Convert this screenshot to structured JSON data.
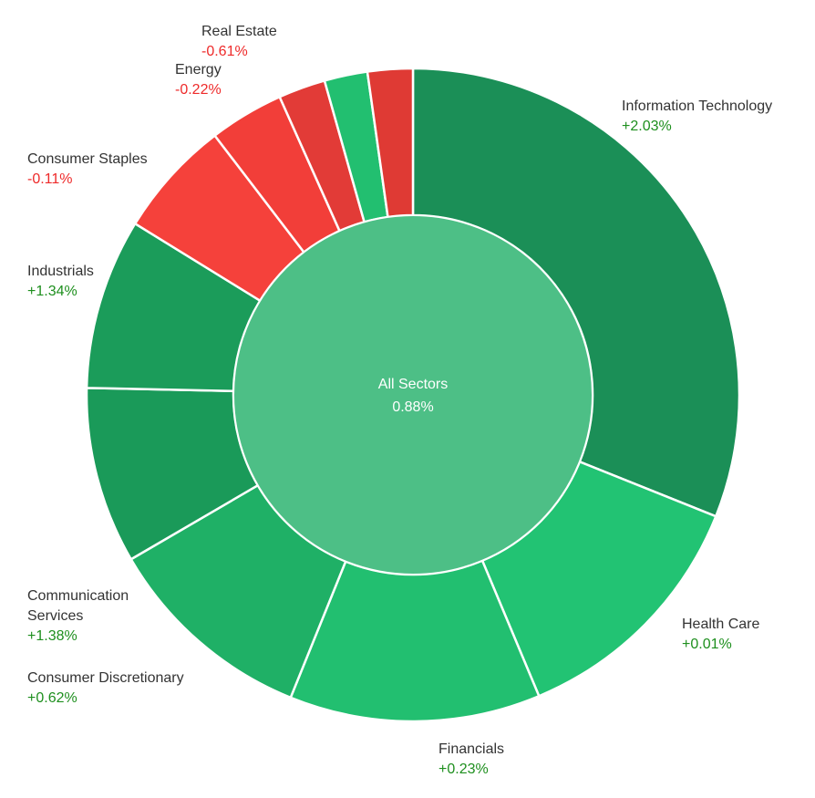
{
  "chart_data": {
    "type": "sunburst",
    "center": {
      "label": "All Sectors",
      "change": "0.88%",
      "color": "#4dbf86"
    },
    "sectors": [
      {
        "name": "Information Technology",
        "change": "+2.03%",
        "weight": 32.0,
        "color": "#1b8f57"
      },
      {
        "name": "Health Care",
        "change": "+0.01%",
        "weight": 13.0,
        "color": "#22c373"
      },
      {
        "name": "Financials",
        "change": "+0.23%",
        "weight": 12.8,
        "color": "#22bf70"
      },
      {
        "name": "Consumer Discretionary",
        "change": "+0.62%",
        "weight": 10.8,
        "color": "#1fb066"
      },
      {
        "name": "Communication Services",
        "change": "+1.38%",
        "weight": 9.0,
        "color": "#1a9a59"
      },
      {
        "name": "Industrials",
        "change": "+1.34%",
        "weight": 8.7,
        "color": "#1b9c5a"
      },
      {
        "name": "Consumer Staples",
        "change": "-0.11%",
        "weight": 6.0,
        "color": "#f5413b"
      },
      {
        "name": "Energy",
        "change": "-0.22%",
        "weight": 3.8,
        "color": "#f23e39"
      },
      {
        "name": "Real Estate",
        "change": "-0.61%",
        "weight": 2.4,
        "color": "#e23b37"
      },
      {
        "name": "",
        "change": "",
        "weight": 2.2,
        "color": "#22bf70"
      },
      {
        "name": "",
        "change": "",
        "weight": 2.3,
        "color": "#df3a34"
      }
    ]
  }
}
